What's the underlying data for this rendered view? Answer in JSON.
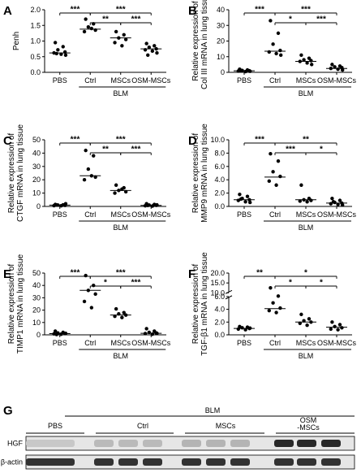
{
  "figure": {
    "groups": [
      "PBS",
      "Ctrl",
      "MSCs",
      "OSM-MSCs"
    ],
    "treatment_label": "BLM"
  },
  "chart_data": [
    {
      "id": "A",
      "type": "scatter",
      "panel_label": "A",
      "ylabel": [
        "Penh"
      ],
      "ylim": [
        0,
        2.0
      ],
      "yticks": [
        "0.0",
        "0.5",
        "1.0",
        "1.5",
        "2.0"
      ],
      "ytick_values": [
        0,
        0.5,
        1.0,
        1.5,
        2.0
      ],
      "categories": [
        "PBS",
        "Ctrl",
        "MSCs",
        "OSM-MSCs"
      ],
      "points": [
        [
          0.95,
          0.82,
          0.72,
          0.65,
          0.62,
          0.58,
          0.55,
          0.6
        ],
        [
          1.7,
          1.55,
          1.45,
          1.35,
          1.3,
          1.4
        ],
        [
          1.3,
          1.2,
          1.1,
          1.05,
          0.95,
          0.85
        ],
        [
          0.92,
          0.85,
          0.8,
          0.75,
          0.72,
          0.68,
          0.62,
          0.55
        ]
      ],
      "medians": [
        0.62,
        1.38,
        1.1,
        0.75
      ],
      "comparisons": [
        {
          "from": 0,
          "to": 1,
          "label": "***"
        },
        {
          "from": 1,
          "to": 2,
          "label": "**"
        },
        {
          "from": 1,
          "to": 3,
          "label": "***"
        },
        {
          "from": 2,
          "to": 3,
          "label": "***"
        }
      ]
    },
    {
      "id": "B",
      "type": "scatter",
      "panel_label": "B",
      "ylabel": [
        "Relative expression of",
        "Col III mRNA in lung tissue"
      ],
      "ylim": [
        0,
        40
      ],
      "yticks": [
        "0",
        "10",
        "20",
        "30",
        "40"
      ],
      "ytick_values": [
        0,
        10,
        20,
        30,
        40
      ],
      "categories": [
        "PBS",
        "Ctrl",
        "MSCs",
        "OSM-MSCs"
      ],
      "points": [
        [
          2.0,
          1.5,
          1.2,
          1.0,
          0.8,
          0.5,
          0.7,
          1.1
        ],
        [
          33,
          25,
          18,
          14,
          13,
          12,
          11
        ],
        [
          11,
          9,
          8,
          7.5,
          7,
          6,
          5
        ],
        [
          5,
          4,
          3.5,
          3,
          2.5,
          2,
          1.5
        ]
      ],
      "medians": [
        1.0,
        13.5,
        7.0,
        2.5
      ],
      "comparisons": [
        {
          "from": 0,
          "to": 1,
          "label": "***"
        },
        {
          "from": 1,
          "to": 2,
          "label": "*"
        },
        {
          "from": 1,
          "to": 3,
          "label": "***"
        },
        {
          "from": 2,
          "to": 3,
          "label": "***"
        }
      ]
    },
    {
      "id": "C",
      "type": "scatter",
      "panel_label": "C",
      "ylabel": [
        "Relative expression of",
        "CTGF mRNA in lung tissue"
      ],
      "ylim": [
        0,
        50
      ],
      "yticks": [
        "0",
        "10",
        "20",
        "30",
        "40",
        "50"
      ],
      "ytick_values": [
        0,
        10,
        20,
        30,
        40,
        50
      ],
      "categories": [
        "PBS",
        "Ctrl",
        "MSCs",
        "OSM-MSCs"
      ],
      "points": [
        [
          1.5,
          1.2,
          1.0,
          0.8,
          0.6,
          0.5,
          2.0,
          1.1
        ],
        [
          42,
          38,
          28,
          22,
          20,
          23
        ],
        [
          16,
          14,
          12,
          11,
          10,
          13
        ],
        [
          2.0,
          1.5,
          1.0,
          0.8,
          0.5,
          0.3,
          1.2,
          0.7
        ]
      ],
      "medians": [
        1.0,
        23,
        12,
        0.8
      ],
      "comparisons": [
        {
          "from": 0,
          "to": 1,
          "label": "***"
        },
        {
          "from": 1,
          "to": 2,
          "label": "**"
        },
        {
          "from": 1,
          "to": 3,
          "label": "***"
        },
        {
          "from": 2,
          "to": 3,
          "label": "***"
        }
      ]
    },
    {
      "id": "D",
      "type": "scatter",
      "panel_label": "D",
      "ylabel": [
        "Relative expression of",
        "MMP9 mRNA in lung tissue"
      ],
      "ylim": [
        0,
        10
      ],
      "yticks": [
        "0.0",
        "2.0",
        "4.0",
        "6.0",
        "8.0",
        "10.0"
      ],
      "ytick_values": [
        0,
        2,
        4,
        6,
        8,
        10
      ],
      "categories": [
        "PBS",
        "Ctrl",
        "MSCs",
        "OSM-MSCs"
      ],
      "points": [
        [
          1.8,
          1.5,
          1.2,
          1.0,
          0.9,
          0.7,
          0.6,
          1.1
        ],
        [
          7.9,
          6.8,
          5.2,
          4.5,
          3.8,
          3.2
        ],
        [
          3.2,
          1.2,
          1.0,
          0.9,
          0.8,
          0.7
        ],
        [
          1.2,
          0.9,
          0.6,
          0.5,
          0.4,
          0.3,
          0.2,
          0.7
        ]
      ],
      "medians": [
        1.0,
        4.4,
        1.0,
        0.5
      ],
      "comparisons": [
        {
          "from": 0,
          "to": 1,
          "label": "***"
        },
        {
          "from": 1,
          "to": 2,
          "label": "***"
        },
        {
          "from": 1,
          "to": 3,
          "label": "**"
        },
        {
          "from": 2,
          "to": 3,
          "label": "*"
        }
      ]
    },
    {
      "id": "E",
      "type": "scatter",
      "panel_label": "E",
      "ylabel": [
        "Relative expression of",
        "TIMP1 mRNA in lung tissue"
      ],
      "ylim": [
        0,
        50
      ],
      "yticks": [
        "0",
        "10",
        "20",
        "30",
        "40",
        "50"
      ],
      "ytick_values": [
        0,
        10,
        20,
        30,
        40,
        50
      ],
      "categories": [
        "PBS",
        "Ctrl",
        "MSCs",
        "OSM-MSCs"
      ],
      "points": [
        [
          3.0,
          2.0,
          1.5,
          1.0,
          0.8,
          0.5,
          1.2,
          0.3
        ],
        [
          48,
          40,
          36,
          33,
          27,
          22
        ],
        [
          21,
          18,
          17,
          16,
          15,
          14
        ],
        [
          5,
          3,
          2,
          1.5,
          1,
          0.5,
          1.2
        ]
      ],
      "medians": [
        1.0,
        36,
        16,
        1.2
      ],
      "comparisons": [
        {
          "from": 0,
          "to": 1,
          "label": "***"
        },
        {
          "from": 1,
          "to": 2,
          "label": "*"
        },
        {
          "from": 1,
          "to": 3,
          "label": "***"
        },
        {
          "from": 2,
          "to": 3,
          "label": "***"
        }
      ]
    },
    {
      "id": "F",
      "type": "scatter",
      "panel_label": "F",
      "ylabel": [
        "Relative expression of",
        "TGF-β1 mRNA in lung tissue"
      ],
      "ylim": [
        0,
        20
      ],
      "broken_axis": {
        "lower_max": 6.0,
        "upper_min": 10.0
      },
      "yticks": [
        "0.0",
        "2.0",
        "4.0",
        "6.0",
        "10.0",
        "15.0",
        "20.0"
      ],
      "ytick_values": [
        0,
        2,
        4,
        6,
        10,
        15,
        20
      ],
      "categories": [
        "PBS",
        "Ctrl",
        "MSCs",
        "OSM-MSCs"
      ],
      "points": [
        [
          1.3,
          1.2,
          1.1,
          1.0,
          0.9,
          0.8,
          1.05
        ],
        [
          12.5,
          6.5,
          5.0,
          4.2,
          3.8,
          3.5
        ],
        [
          3.2,
          2.5,
          2.2,
          2.0,
          1.8,
          1.5
        ],
        [
          2.0,
          1.6,
          1.3,
          1.1,
          0.9,
          0.8
        ]
      ],
      "medians": [
        1.0,
        4.1,
        2.0,
        1.2
      ],
      "comparisons": [
        {
          "from": 0,
          "to": 1,
          "label": "**"
        },
        {
          "from": 1,
          "to": 2,
          "label": "*"
        },
        {
          "from": 1,
          "to": 3,
          "label": "*"
        },
        {
          "from": 2,
          "to": 3,
          "label": "*"
        }
      ]
    }
  ],
  "blot": {
    "panel_label": "G",
    "header_group": "BLM",
    "columns": [
      "PBS",
      "Ctrl",
      "MSCs",
      "OSM\n-MSCs"
    ],
    "rows": [
      {
        "label": "HGF",
        "intensity": [
          0.15,
          0.22,
          0.25,
          0.95
        ]
      },
      {
        "label": "β-actin",
        "intensity": [
          0.9,
          0.9,
          0.9,
          0.9
        ]
      }
    ]
  }
}
